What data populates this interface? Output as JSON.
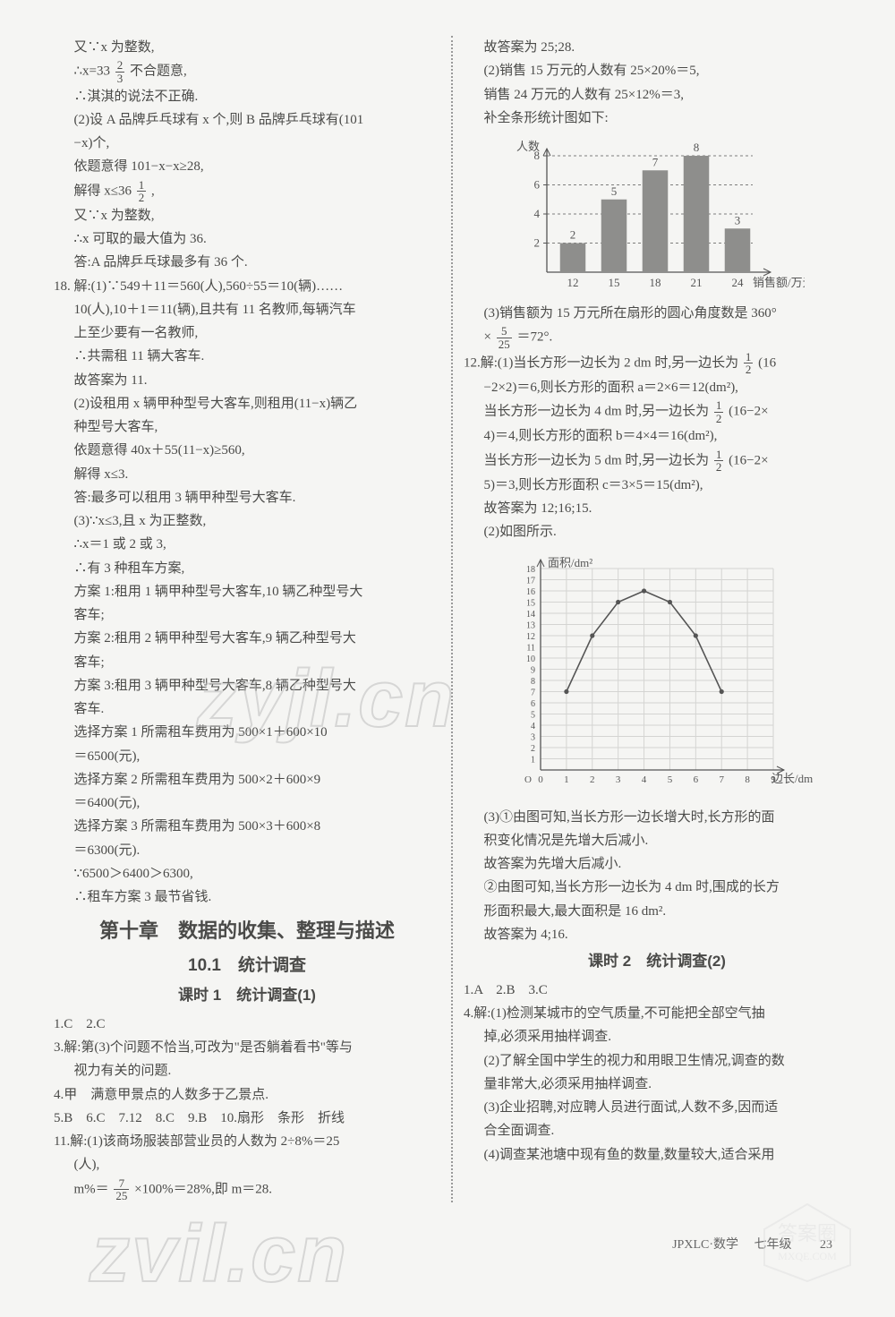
{
  "left": {
    "p01": "又∵x 为整数,",
    "p02_a": "∴x=33",
    "p02_num": "2",
    "p02_den": "3",
    "p02_b": "不合题意,",
    "p03": "∴淇淇的说法不正确.",
    "p04": "(2)设 A 品牌乒乓球有 x 个,则 B 品牌乒乓球有(101",
    "p05": "−x)个,",
    "p06": "依题意得 101−x−x≥28,",
    "p07_a": "解得 x≤36",
    "p07_num": "1",
    "p07_den": "2",
    "p07_b": ",",
    "p08": "又∵x 为整数,",
    "p09": "∴x 可取的最大值为 36.",
    "p10": "答:A 品牌乒乓球最多有 36 个.",
    "p11": "18. 解:(1)∵549＋11＝560(人),560÷55＝10(辆)……",
    "p12": "10(人),10＋1＝11(辆),且共有 11 名教师,每辆汽车",
    "p13": "上至少要有一名教师,",
    "p14": "∴共需租 11 辆大客车.",
    "p15": "故答案为 11.",
    "p16": "(2)设租用 x 辆甲种型号大客车,则租用(11−x)辆乙",
    "p17": "种型号大客车,",
    "p18": "依题意得 40x＋55(11−x)≥560,",
    "p19": "解得 x≤3.",
    "p20": "答:最多可以租用 3 辆甲种型号大客车.",
    "p21": "(3)∵x≤3,且 x 为正整数,",
    "p22": "∴x＝1 或 2 或 3,",
    "p23": "∴有 3 种租车方案,",
    "p24": "方案 1:租用 1 辆甲种型号大客车,10 辆乙种型号大",
    "p25": "客车;",
    "p26": "方案 2:租用 2 辆甲种型号大客车,9 辆乙种型号大",
    "p27": "客车;",
    "p28": "方案 3:租用 3 辆甲种型号大客车,8 辆乙种型号大",
    "p29": "客车.",
    "p30": "选择方案 1 所需租车费用为 500×1＋600×10",
    "p31": "＝6500(元),",
    "p32": "选择方案 2 所需租车费用为 500×2＋600×9",
    "p33": "＝6400(元),",
    "p34": "选择方案 3 所需租车费用为 500×3＋600×8",
    "p35": "＝6300(元).",
    "p36": "∵6500＞6400＞6300,",
    "p37": "∴租车方案 3 最节省钱.",
    "h_ch": "第十章　数据的收集、整理与描述",
    "h_sec": "10.1　统计调查",
    "h_les1": "课时 1　统计调查(1)",
    "a1": "1.C　2.C",
    "a2": "3.解:第(3)个问题不恰当,可改为\"是否躺着看书\"等与",
    "a2b": "视力有关的问题.",
    "a3": "4.甲　满意甲景点的人数多于乙景点.",
    "a4": "5.B　6.C　7.12　8.C　9.B　10.扇形　条形　折线",
    "a5": "11.解:(1)该商场服装部营业员的人数为 2÷8%＝25",
    "a5b": "(人),",
    "a6_a": "m%＝",
    "a6_num": "7",
    "a6_den": "25",
    "a6_b": "×100%＝28%,即 m＝28."
  },
  "right": {
    "p01": "故答案为 25;28.",
    "p02": "(2)销售 15 万元的人数有 25×20%＝5,",
    "p03": "销售 24 万元的人数有 25×12%＝3,",
    "p04": "补全条形统计图如下:",
    "bar": {
      "ylabel": "人数",
      "xlabel": "销售额/万元",
      "yticks": [
        2,
        4,
        6,
        8
      ],
      "xcats": [
        "12",
        "15",
        "18",
        "21",
        "24"
      ],
      "values": [
        2,
        5,
        7,
        8,
        3
      ],
      "bar_color": "#8e8e8c",
      "axis_color": "#555"
    },
    "p05": "(3)销售额为 15 万元所在扇形的圆心角度数是 360°",
    "p06_a": "×",
    "p06_num": "5",
    "p06_den": "25",
    "p06_b": "＝72°.",
    "p07_a": "12.解:(1)当长方形一边长为 2 dm 时,另一边长为",
    "p07_num": "1",
    "p07_den": "2",
    "p07_b": "(16",
    "p08": "−2×2)＝6,则长方形的面积 a＝2×6＝12(dm²),",
    "p09_a": "当长方形一边长为 4 dm 时,另一边长为",
    "p09_num": "1",
    "p09_den": "2",
    "p09_b": "(16−2×",
    "p10": "4)＝4,则长方形的面积 b＝4×4＝16(dm²),",
    "p11_a": "当长方形一边长为 5 dm 时,另一边长为",
    "p11_num": "1",
    "p11_den": "2",
    "p11_b": "(16−2×",
    "p12": "5)＝3,则长方形面积 c＝3×5＝15(dm²),",
    "p13": "故答案为 12;16;15.",
    "p14": "(2)如图所示.",
    "line_chart": {
      "ylabel": "面积/dm²",
      "xlabel": "边长/dm",
      "xmax": 9,
      "ymax": 18,
      "xticks": [
        0,
        1,
        2,
        3,
        4,
        5,
        6,
        7,
        8,
        9
      ],
      "yticks": [
        1,
        2,
        3,
        4,
        5,
        6,
        7,
        8,
        9,
        10,
        11,
        12,
        13,
        14,
        15,
        16,
        17,
        18
      ],
      "points": [
        [
          1,
          7
        ],
        [
          2,
          12
        ],
        [
          3,
          15
        ],
        [
          4,
          16
        ],
        [
          5,
          15
        ],
        [
          6,
          12
        ],
        [
          7,
          7
        ]
      ],
      "grid_color": "#d4d4d2",
      "axis_color": "#555",
      "line_color": "#555"
    },
    "p15": "(3)①由图可知,当长方形一边长增大时,长方形的面",
    "p16": "积变化情况是先增大后减小.",
    "p17": "故答案为先增大后减小.",
    "p18": "②由图可知,当长方形一边长为 4 dm 时,围成的长方",
    "p19": "形面积最大,最大面积是 16 dm².",
    "p20": "故答案为 4;16.",
    "h_les2": "课时 2　统计调查(2)",
    "b1": "1.A　2.B　3.C",
    "b2": "4.解:(1)检测某城市的空气质量,不可能把全部空气抽",
    "b2b": "掉,必须采用抽样调查.",
    "b3": "(2)了解全国中学生的视力和用眼卫生情况,调查的数",
    "b3b": "量非常大,必须采用抽样调查.",
    "b4": "(3)企业招聘,对应聘人员进行面试,人数不多,因而适",
    "b4b": "合全面调查.",
    "b5": "(4)调查某池塘中现有鱼的数量,数量较大,适合采用"
  },
  "footer_a": "JPXLC·数学",
  "footer_b": "七年级",
  "footer_c": "23",
  "wm1": "zyjl.cn",
  "wm2": "zvil.cn",
  "stamp1": "答案圈",
  "stamp2": "MXQE.COM"
}
